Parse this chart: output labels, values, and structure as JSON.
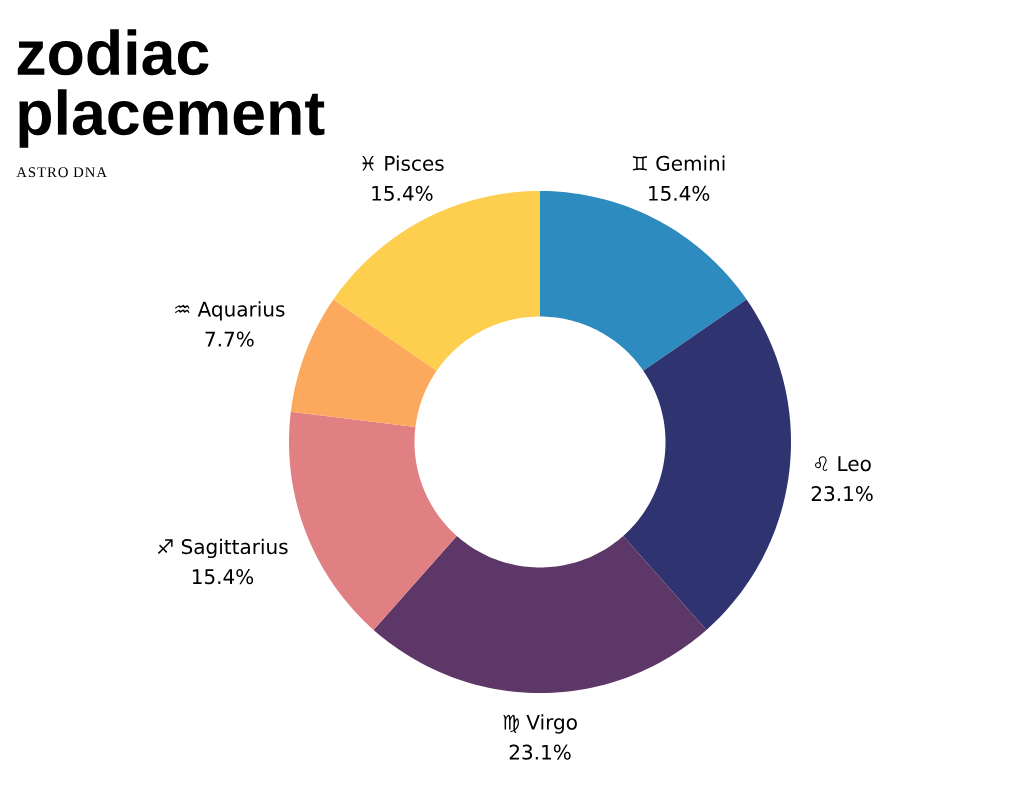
{
  "chart_data": {
    "type": "donut",
    "title": "zodiac placement",
    "subtitle": "ASTRO DNA",
    "categories": [
      "♊ Gemini",
      "♌ Leo",
      "♍ Virgo",
      "♐ Sagittarius",
      "♒ Aquarius",
      "♓ Pisces"
    ],
    "values": [
      15.4,
      23.1,
      23.1,
      15.4,
      7.7,
      15.4
    ],
    "value_labels": [
      "15.4%",
      "23.1%",
      "23.1%",
      "15.4%",
      "7.7%",
      "15.4%"
    ],
    "colors": [
      "#2d8bbf",
      "#2f3470",
      "#5d3767",
      "#e08083",
      "#fda95d",
      "#fecf4f"
    ]
  }
}
